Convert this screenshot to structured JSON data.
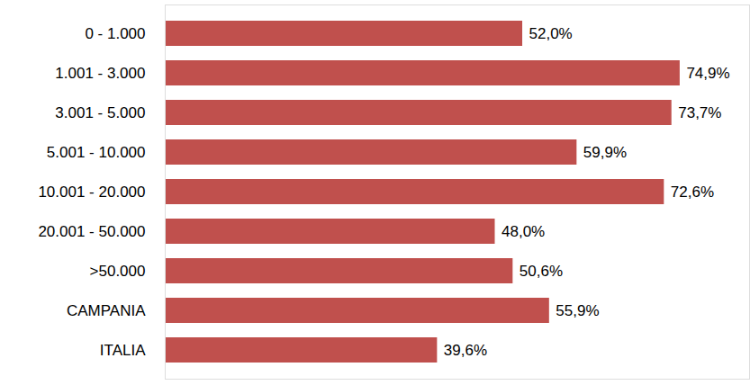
{
  "chart_data": {
    "type": "bar",
    "orientation": "horizontal",
    "categories": [
      "0 - 1.000",
      "1.001 - 3.000",
      "3.001 - 5.000",
      "5.001 - 10.000",
      "10.001 - 20.000",
      "20.001 - 50.000",
      ">50.000",
      "CAMPANIA",
      "ITALIA"
    ],
    "values": [
      52.0,
      74.9,
      73.7,
      59.9,
      72.6,
      48.0,
      50.6,
      55.9,
      39.6
    ],
    "value_labels": [
      "52,0%",
      "74,9%",
      "73,7%",
      "59,9%",
      "72,6%",
      "48,0%",
      "50,6%",
      "55,9%",
      "39,6%"
    ],
    "color": "#c0504d",
    "xlim": [
      0,
      85
    ],
    "xticks": [],
    "grid": false,
    "data_labels": true,
    "tick_labels": "y"
  }
}
